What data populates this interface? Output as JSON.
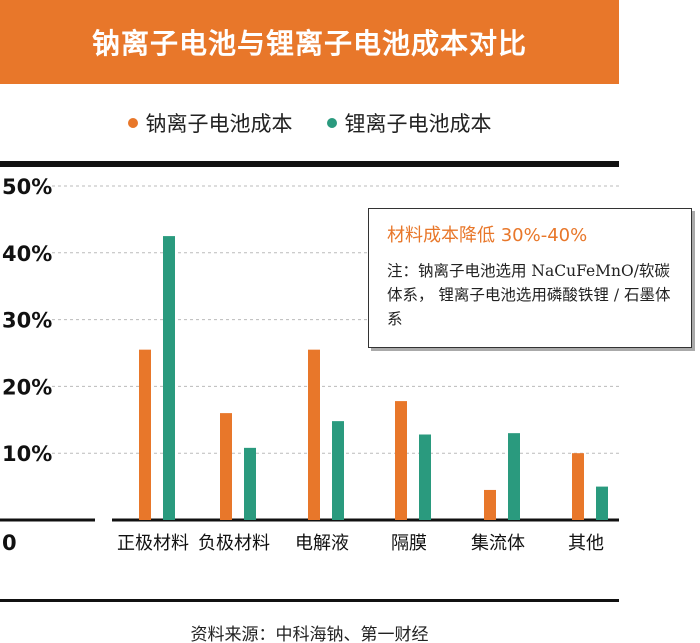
{
  "title": "钠离子电池与锂离子电池成本对比",
  "colors": {
    "sodium": "#E8772A",
    "lithium": "#2A9A7E"
  },
  "legend": [
    {
      "label": "钠离子电池成本",
      "color": "#E8772A"
    },
    {
      "label": "锂离子电池成本",
      "color": "#2A9A7E"
    }
  ],
  "annotation": {
    "heading": "材料成本降低 30%-40%",
    "body": "注：钠离子电池选用 NaCuFeMnO/软碳体系， 锂离子电池选用磷酸铁锂 / 石墨体系"
  },
  "source": "资料来源：中科海钠、第一财经",
  "chart_data": {
    "type": "bar",
    "categories": [
      "正极材料",
      "负极材料",
      "电解液",
      "隔膜",
      "集流体",
      "其他"
    ],
    "series": [
      {
        "name": "钠离子电池成本",
        "values": [
          25.5,
          16,
          25.5,
          17.8,
          4.5,
          10
        ]
      },
      {
        "name": "锂离子电池成本",
        "values": [
          42.5,
          10.8,
          14.8,
          12.8,
          13,
          5
        ]
      }
    ],
    "yticks": [
      "0",
      "10%",
      "20%",
      "30%",
      "40%",
      "50%"
    ],
    "ylim": [
      0,
      50
    ],
    "grid": true,
    "legend_position": "top-center"
  }
}
